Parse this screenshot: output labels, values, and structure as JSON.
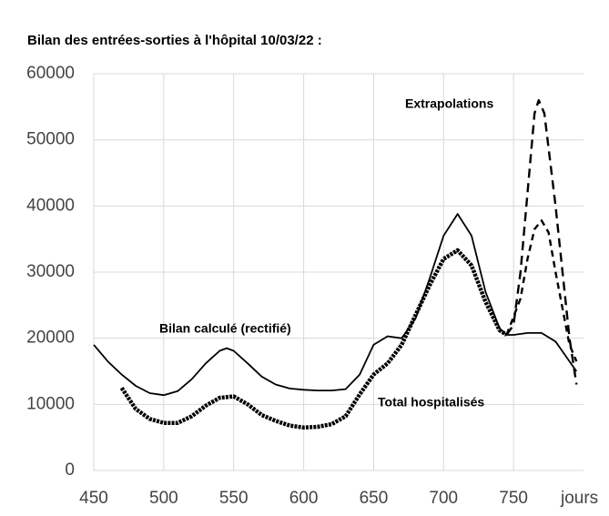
{
  "chart_data": {
    "type": "line",
    "title": "Bilan  des entrées-sorties à l'hôpital    10/03/22  :",
    "x_label": "jours",
    "xlim": [
      450,
      800
    ],
    "xticks": [
      450,
      500,
      550,
      600,
      650,
      700,
      750
    ],
    "ylim": [
      0,
      60000
    ],
    "yticks": [
      0,
      10000,
      20000,
      30000,
      40000,
      50000,
      60000
    ],
    "grid": true,
    "series": [
      {
        "name": "Bilan calculé (rectifié)",
        "color": "#000000",
        "linestyle": "solid",
        "x": [
          450,
          460,
          470,
          480,
          490,
          500,
          510,
          520,
          530,
          540,
          545,
          550,
          560,
          570,
          580,
          590,
          600,
          610,
          620,
          630,
          640,
          650,
          660,
          670,
          680,
          690,
          700,
          710,
          720,
          730,
          740,
          745,
          750,
          760,
          770,
          780,
          790,
          795
        ],
        "values": [
          19000,
          16500,
          14500,
          12800,
          11700,
          11400,
          12000,
          13800,
          16200,
          18100,
          18500,
          18100,
          16200,
          14200,
          13000,
          12400,
          12200,
          12100,
          12100,
          12300,
          14500,
          19000,
          20300,
          20000,
          23000,
          29000,
          35500,
          38800,
          35500,
          27000,
          21500,
          20500,
          20500,
          20800,
          20800,
          19500,
          16500,
          15000
        ]
      },
      {
        "name": "Total hospitalisés",
        "color": "#000000",
        "linestyle": "dotted",
        "x": [
          470,
          480,
          490,
          500,
          510,
          520,
          530,
          540,
          550,
          560,
          570,
          580,
          590,
          600,
          610,
          620,
          630,
          640,
          650,
          660,
          670,
          680,
          690,
          700,
          710,
          720,
          730,
          740,
          745
        ],
        "values": [
          12500,
          9300,
          7800,
          7200,
          7200,
          8200,
          9800,
          11000,
          11200,
          10000,
          8400,
          7500,
          6800,
          6500,
          6600,
          7000,
          8200,
          11500,
          14500,
          16200,
          19000,
          23500,
          28000,
          32000,
          33300,
          31000,
          25500,
          21200,
          20500
        ]
      },
      {
        "name": "Extrapolations",
        "color": "#000000",
        "linestyle": "dashed",
        "x": [
          745,
          750,
          755,
          760,
          765,
          768,
          772,
          780,
          790,
          795
        ],
        "values": [
          20500,
          22000,
          30000,
          42000,
          54000,
          56000,
          54000,
          40000,
          20000,
          13000
        ]
      },
      {
        "color": "#000000",
        "linestyle": "dashed",
        "x": [
          745,
          755,
          760,
          765,
          770,
          775,
          780,
          790,
          795
        ],
        "values": [
          20500,
          26000,
          32000,
          36500,
          37800,
          36000,
          30000,
          19000,
          16500
        ]
      }
    ]
  }
}
